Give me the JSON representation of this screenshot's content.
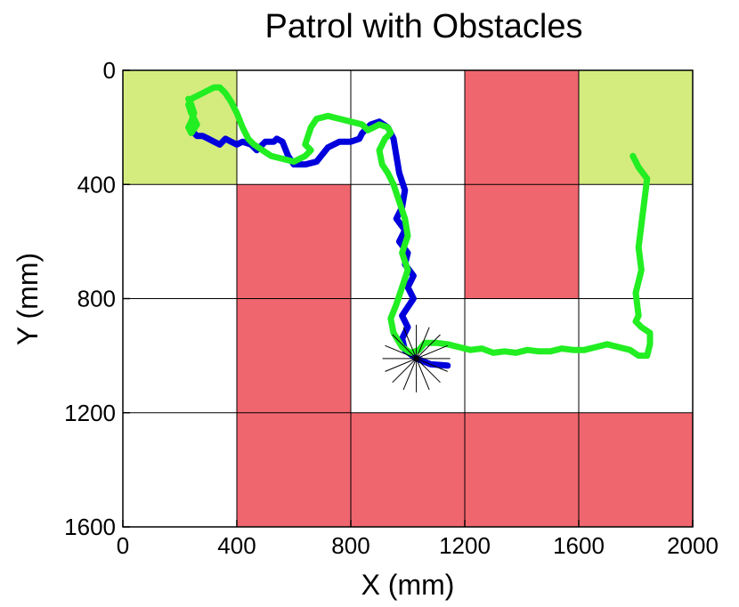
{
  "chart_data": {
    "type": "line",
    "title": "Patrol with Obstacles",
    "xlabel": "X (mm)",
    "ylabel": "Y (mm)",
    "xlim": [
      0,
      2000
    ],
    "ylim": [
      0,
      1600
    ],
    "y_inverted": true,
    "x_ticks": [
      "0",
      "400",
      "800",
      "1200",
      "1600",
      "2000"
    ],
    "y_ticks": [
      "0",
      "400",
      "800",
      "1200",
      "1600"
    ],
    "x_tick_values": [
      0,
      400,
      800,
      1200,
      1600,
      2000
    ],
    "y_tick_values": [
      0,
      400,
      800,
      1200,
      1600
    ],
    "grid": true,
    "grid_cell_size": 400,
    "cells": [
      {
        "col": 0,
        "row": 0,
        "color": "#d4ec7e"
      },
      {
        "col": 4,
        "row": 0,
        "color": "#d4ec7e"
      },
      {
        "col": 3,
        "row": 0,
        "color": "#f0666e"
      },
      {
        "col": 1,
        "row": 1,
        "color": "#f0666e"
      },
      {
        "col": 3,
        "row": 1,
        "color": "#f0666e"
      },
      {
        "col": 1,
        "row": 2,
        "color": "#f0666e"
      },
      {
        "col": 1,
        "row": 3,
        "color": "#f0666e"
      },
      {
        "col": 2,
        "row": 3,
        "color": "#f0666e"
      },
      {
        "col": 3,
        "row": 3,
        "color": "#f0666e"
      },
      {
        "col": 4,
        "row": 3,
        "color": "#f0666e"
      }
    ],
    "series": [
      {
        "color": "#0000dd",
        "x": [
          1140,
          1080,
          1030,
          990,
          980,
          1000,
          980,
          1020,
          1000,
          1020,
          990,
          1000,
          970,
          990,
          960,
          980,
          990,
          970,
          960,
          950,
          930,
          900,
          870,
          840,
          830,
          800,
          760,
          720,
          680,
          640,
          600,
          580,
          560,
          540,
          530,
          500,
          470,
          450,
          420,
          400,
          380,
          360,
          340,
          320,
          300,
          280,
          260,
          240
        ],
        "y": [
          1035,
          1030,
          1010,
          980,
          940,
          900,
          860,
          800,
          760,
          720,
          680,
          640,
          600,
          560,
          520,
          480,
          420,
          360,
          300,
          240,
          200,
          180,
          190,
          220,
          240,
          250,
          250,
          270,
          320,
          330,
          330,
          300,
          250,
          240,
          250,
          250,
          280,
          260,
          250,
          260,
          250,
          240,
          260,
          250,
          240,
          230,
          230,
          210
        ]
      },
      {
        "color": "#22ee22",
        "x": [
          1790,
          1810,
          1840,
          1830,
          1820,
          1810,
          1820,
          1800,
          1810,
          1800,
          1820,
          1850,
          1850,
          1840,
          1810,
          1780,
          1740,
          1700,
          1660,
          1620,
          1580,
          1540,
          1500,
          1460,
          1420,
          1380,
          1340,
          1300,
          1260,
          1220,
          1180,
          1140,
          1100,
          1060,
          1040,
          1010,
          980,
          950,
          940,
          960,
          980,
          1000,
          980,
          1000,
          990,
          970,
          950,
          930,
          910,
          900,
          920,
          940,
          930,
          900,
          880,
          860,
          840,
          800,
          760,
          720,
          680,
          660,
          650,
          640,
          660,
          640,
          600,
          560,
          520,
          490,
          460,
          440,
          420,
          400,
          380,
          360,
          340,
          320,
          300,
          280,
          260,
          240,
          230,
          240,
          260,
          240,
          230,
          240,
          250,
          240,
          230
        ],
        "y": [
          300,
          340,
          380,
          460,
          540,
          620,
          700,
          780,
          860,
          880,
          900,
          920,
          960,
          1000,
          1000,
          980,
          970,
          960,
          970,
          980,
          980,
          975,
          985,
          985,
          980,
          990,
          985,
          990,
          975,
          980,
          970,
          960,
          955,
          955,
          980,
          990,
          970,
          920,
          870,
          820,
          760,
          700,
          640,
          580,
          520,
          460,
          400,
          360,
          330,
          280,
          240,
          220,
          200,
          190,
          200,
          210,
          190,
          180,
          170,
          160,
          170,
          200,
          230,
          260,
          280,
          300,
          320,
          310,
          300,
          280,
          260,
          240,
          200,
          150,
          110,
          80,
          60,
          60,
          70,
          80,
          90,
          100,
          120,
          150,
          190,
          220,
          200,
          180,
          150,
          120,
          100
        ]
      }
    ],
    "marker": {
      "type": "star",
      "x": 1030,
      "y": 1010
    }
  }
}
